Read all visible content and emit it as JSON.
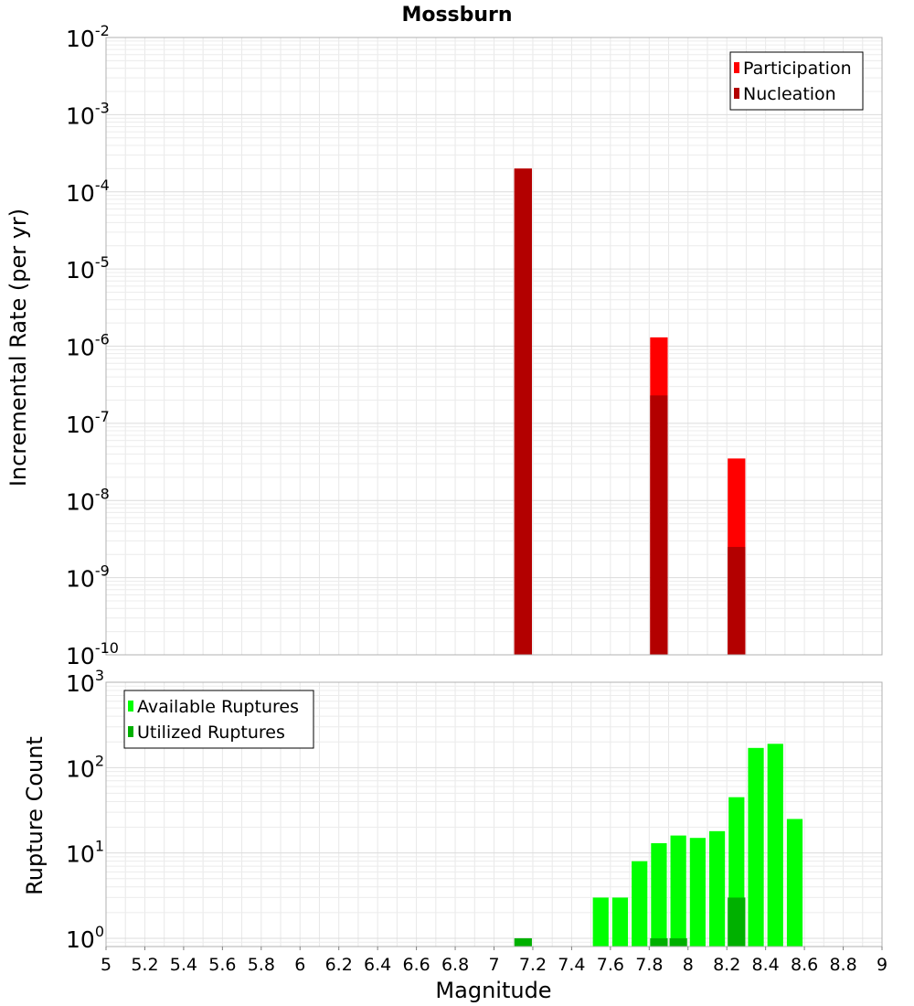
{
  "chart_data": [
    {
      "type": "bar",
      "title": "Mossburn",
      "ylabel": "Incremental Rate (per yr)",
      "yscale": "log",
      "ylim": [
        1e-10,
        0.01
      ],
      "xlim": [
        5,
        9
      ],
      "y_tick_exponents": [
        "-10",
        "-9",
        "-8",
        "-7",
        "-6",
        "-5",
        "-4",
        "-3",
        "-2"
      ],
      "series": [
        {
          "name": "Participation",
          "color": "#ff0000",
          "x": [
            7.15,
            7.85,
            8.25
          ],
          "values": [
            0.0002,
            1.3e-06,
            3.5e-08
          ]
        },
        {
          "name": "Nucleation",
          "color": "#b30000",
          "x": [
            7.15,
            7.85,
            8.25
          ],
          "values": [
            0.0002,
            2.3e-07,
            2.5e-09
          ]
        }
      ],
      "legend": "top-right",
      "grid": true
    },
    {
      "type": "bar",
      "xlabel": "Magnitude",
      "ylabel": "Rupture Count",
      "yscale": "log",
      "ylim": [
        0.8,
        1000
      ],
      "xlim": [
        5,
        9
      ],
      "y_tick_exponents": [
        "0",
        "1",
        "2",
        "3"
      ],
      "x_ticks": [
        "5",
        "5.2",
        "5.4",
        "5.6",
        "5.8",
        "6",
        "6.2",
        "6.4",
        "6.6",
        "6.8",
        "7",
        "7.2",
        "7.4",
        "7.6",
        "7.8",
        "8",
        "8.2",
        "8.4",
        "8.6",
        "8.8",
        "9"
      ],
      "series": [
        {
          "name": "Available Ruptures",
          "color": "#00ff00",
          "x": [
            7.15,
            7.55,
            7.65,
            7.75,
            7.85,
            7.95,
            8.05,
            8.15,
            8.25,
            8.35,
            8.45,
            8.55
          ],
          "values": [
            1,
            3,
            3,
            8,
            13,
            16,
            15,
            18,
            45,
            170,
            190,
            25
          ]
        },
        {
          "name": "Utilized Ruptures",
          "color": "#00b000",
          "x": [
            7.15,
            7.85,
            7.95,
            8.25
          ],
          "values": [
            1,
            1,
            1,
            3
          ]
        }
      ],
      "legend": "top-left",
      "grid": true
    }
  ]
}
